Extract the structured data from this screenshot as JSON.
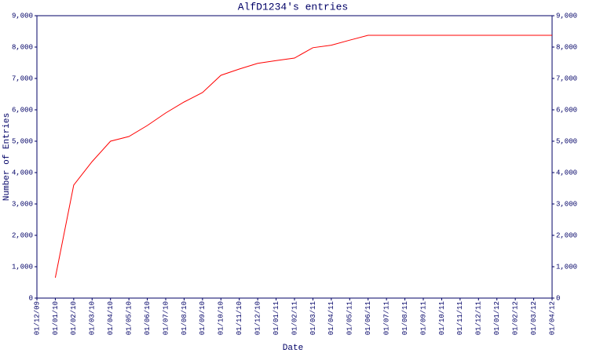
{
  "chart_data": {
    "type": "line",
    "title": "AlfD1234's entries",
    "x_label": "Date",
    "y_label": "Number of Entries",
    "categories": [
      "01/12/09",
      "01/01/10",
      "01/02/10",
      "01/03/10",
      "01/04/10",
      "01/05/10",
      "01/06/10",
      "01/07/10",
      "01/08/10",
      "01/09/10",
      "01/10/10",
      "01/11/10",
      "01/12/10",
      "01/01/11",
      "01/02/11",
      "01/03/11",
      "01/04/11",
      "01/05/11",
      "01/06/11",
      "01/07/11",
      "01/08/11",
      "01/09/11",
      "01/10/11",
      "01/11/11",
      "01/12/11",
      "01/01/12",
      "01/02/12",
      "01/03/12",
      "01/04/12"
    ],
    "series": [
      {
        "name": "Entries",
        "color": "#ff0000",
        "values": [
          null,
          650,
          3600,
          4350,
          5000,
          5150,
          5500,
          5900,
          6250,
          6550,
          7100,
          7300,
          7480,
          7570,
          7650,
          7980,
          8060,
          8220,
          8375,
          8375,
          8375,
          8375,
          8375,
          8375,
          8375,
          8375,
          8375,
          8375,
          8375
        ]
      }
    ],
    "ylim": [
      0,
      9000
    ],
    "yticks": [
      0,
      {
        "value": 1000,
        "label": "1,000"
      },
      {
        "value": 2000,
        "label": "2,000"
      },
      {
        "value": 3000,
        "label": "3,000"
      },
      {
        "value": 4000,
        "label": "4,000"
      },
      {
        "value": 5000,
        "label": "5,000"
      },
      {
        "value": 6000,
        "label": "6,000"
      },
      {
        "value": 7000,
        "label": "7,000"
      },
      {
        "value": 8000,
        "label": "8,000"
      },
      {
        "value": 9000,
        "label": "9,000"
      }
    ],
    "right_axis": true
  }
}
